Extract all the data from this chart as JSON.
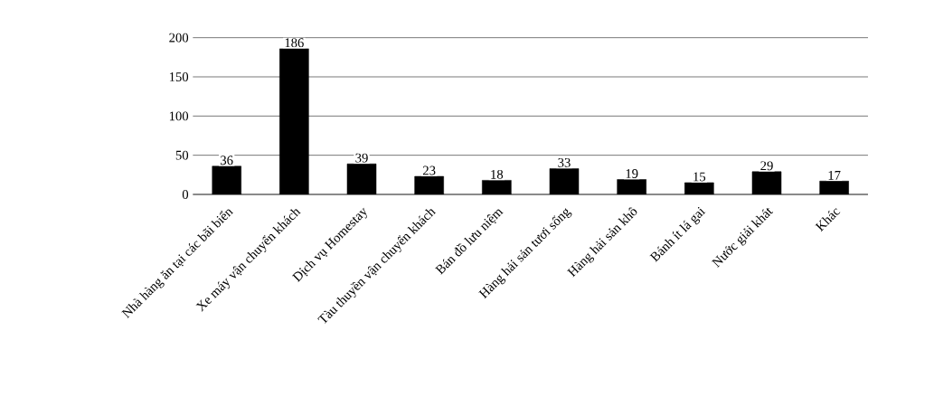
{
  "chart_data": {
    "type": "bar",
    "categories": [
      "Nhà hàng ăn tại các bãi biển",
      "Xe máy vận chuyển khách",
      "Dịch vụ Homestay",
      "Tàu thuyền vận chuyển khách",
      "Bán đồ lưu niệm",
      "Hàng hải sản tươi sống",
      "Hàng hải sản khô",
      "Bánh ít lá gai",
      "Nước giải khát",
      "Khác"
    ],
    "values": [
      36,
      186,
      39,
      23,
      18,
      33,
      19,
      15,
      29,
      17
    ],
    "color": "#000000",
    "ylim": [
      0,
      200
    ],
    "yticks": [
      0,
      50,
      100,
      150,
      200
    ],
    "grid": "y",
    "data_labels": true
  }
}
